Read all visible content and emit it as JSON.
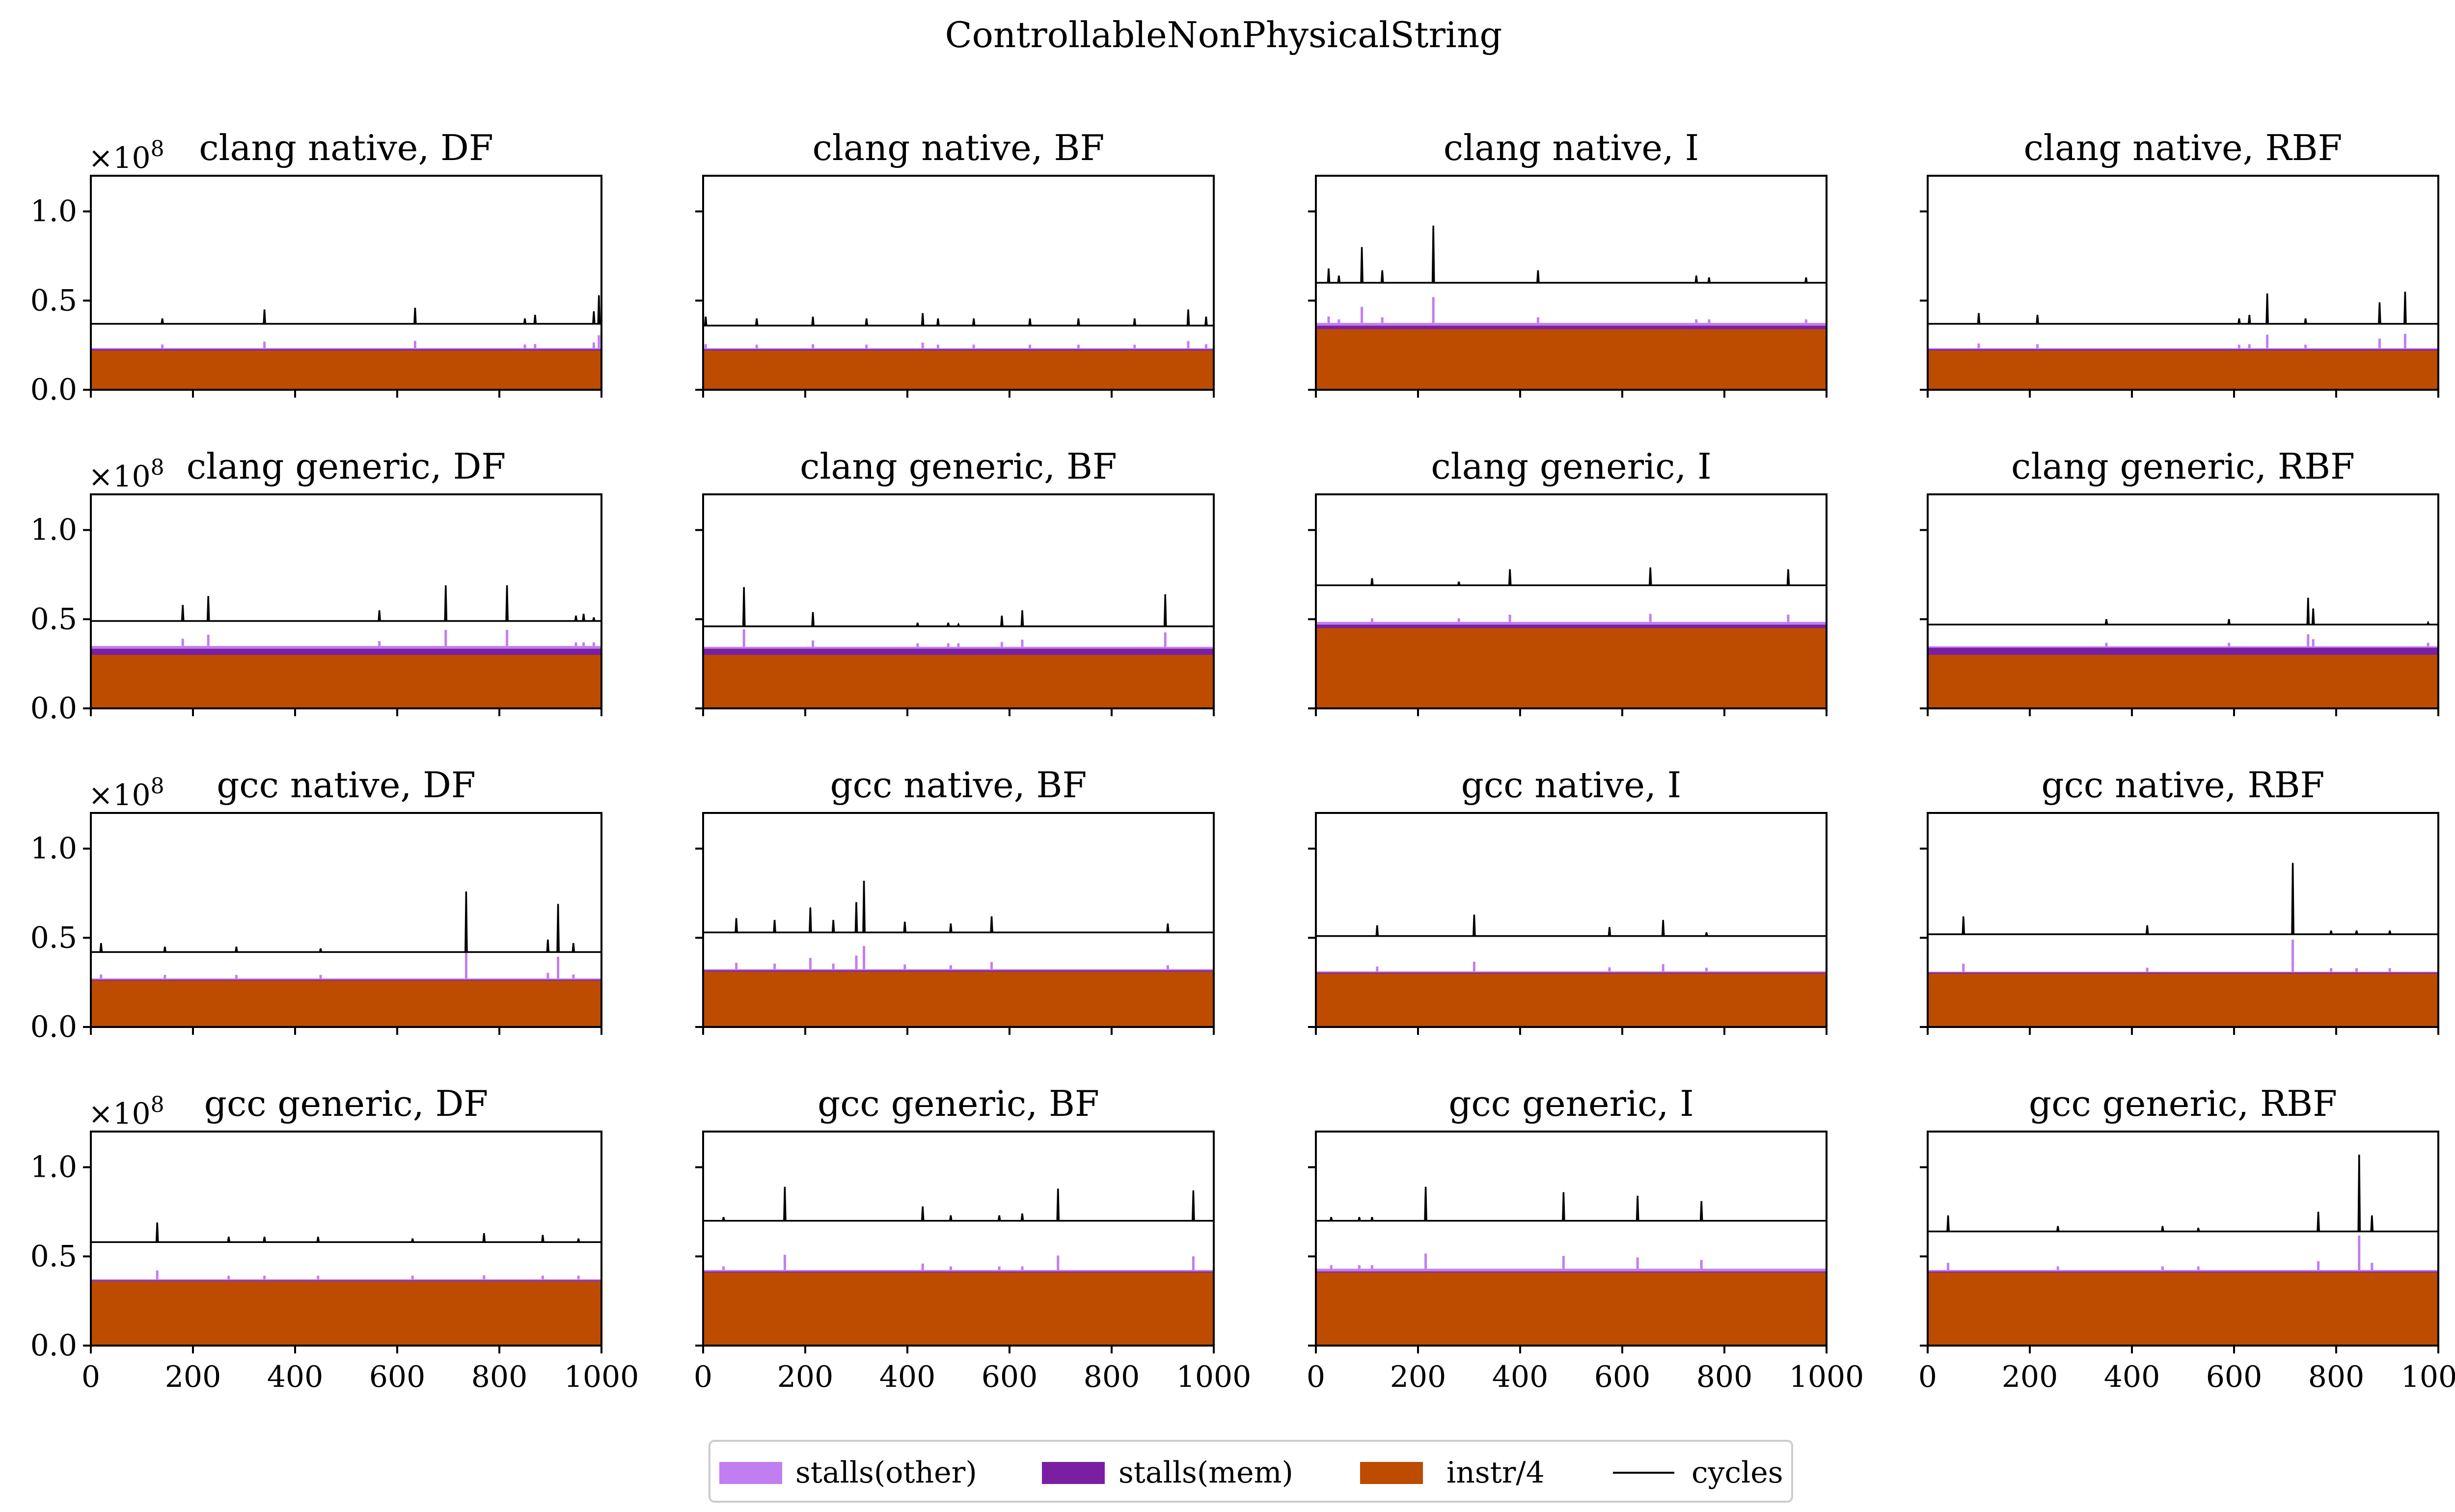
{
  "figure_title": "ControllableNonPhysicalString",
  "colors": {
    "stalls_other": "#c07ef0",
    "stalls_mem": "#7b1fa2",
    "instr": "#bd4b00",
    "cycles": "#000000"
  },
  "legend": [
    {
      "label": "stalls(other)",
      "color_key": "stalls_other",
      "kind": "patch"
    },
    {
      "label": "stalls(mem)",
      "color_key": "stalls_mem",
      "kind": "patch"
    },
    {
      "label": "instr/4",
      "color_key": "instr",
      "kind": "patch"
    },
    {
      "label": "cycles",
      "color_key": "cycles",
      "kind": "line"
    }
  ],
  "chart_data": {
    "type": "area",
    "n_samples": 1000,
    "xlim": [
      0,
      1000
    ],
    "ylim": [
      0,
      1.2
    ],
    "y_multiplier_label": "×10",
    "y_multiplier_exponent": "8",
    "x_tick_labels": [
      "0",
      "200",
      "400",
      "600",
      "800",
      "1000"
    ],
    "x_tick_values": [
      0,
      200,
      400,
      600,
      800,
      1000
    ],
    "y_tick_labels": [
      "0.0",
      "0.5",
      "1.0"
    ],
    "y_tick_values": [
      0,
      0.5,
      1.0
    ],
    "series_names": [
      "stalls(other)",
      "stalls(mem)",
      "instr/4",
      "cycles"
    ],
    "panels": [
      {
        "title": "clang native, DF",
        "instr": 0.22,
        "mem": 0.008,
        "other": 0.006,
        "cycles": 0.37,
        "spikes": [
          [
            140,
            0.4
          ],
          [
            340,
            0.45
          ],
          [
            635,
            0.46
          ],
          [
            850,
            0.4
          ],
          [
            870,
            0.42
          ],
          [
            985,
            0.44
          ],
          [
            995,
            0.53
          ]
        ]
      },
      {
        "title": "clang native, BF",
        "instr": 0.22,
        "mem": 0.008,
        "other": 0.005,
        "cycles": 0.36,
        "spikes": [
          [
            5,
            0.41
          ],
          [
            105,
            0.4
          ],
          [
            215,
            0.41
          ],
          [
            320,
            0.4
          ],
          [
            430,
            0.43
          ],
          [
            460,
            0.4
          ],
          [
            530,
            0.4
          ],
          [
            640,
            0.4
          ],
          [
            735,
            0.4
          ],
          [
            845,
            0.4
          ],
          [
            950,
            0.45
          ],
          [
            985,
            0.41
          ]
        ]
      },
      {
        "title": "clang native, I",
        "instr": 0.34,
        "mem": 0.02,
        "other": 0.015,
        "cycles": 0.6,
        "spikes": [
          [
            25,
            0.68
          ],
          [
            45,
            0.64
          ],
          [
            90,
            0.8
          ],
          [
            130,
            0.67
          ],
          [
            230,
            0.92
          ],
          [
            435,
            0.67
          ],
          [
            745,
            0.64
          ],
          [
            770,
            0.63
          ],
          [
            960,
            0.63
          ]
        ]
      },
      {
        "title": "clang native, RBF",
        "instr": 0.22,
        "mem": 0.008,
        "other": 0.005,
        "cycles": 0.37,
        "spikes": [
          [
            100,
            0.43
          ],
          [
            215,
            0.42
          ],
          [
            610,
            0.4
          ],
          [
            630,
            0.42
          ],
          [
            665,
            0.54
          ],
          [
            740,
            0.4
          ],
          [
            885,
            0.49
          ],
          [
            935,
            0.55
          ]
        ]
      },
      {
        "title": "clang generic, DF",
        "instr": 0.3,
        "mem": 0.035,
        "other": 0.015,
        "cycles": 0.49,
        "spikes": [
          [
            180,
            0.58
          ],
          [
            230,
            0.63
          ],
          [
            565,
            0.55
          ],
          [
            695,
            0.69
          ],
          [
            815,
            0.69
          ],
          [
            950,
            0.52
          ],
          [
            965,
            0.53
          ],
          [
            985,
            0.51
          ]
        ]
      },
      {
        "title": "clang generic, BF",
        "instr": 0.3,
        "mem": 0.035,
        "other": 0.01,
        "cycles": 0.46,
        "spikes": [
          [
            80,
            0.68
          ],
          [
            215,
            0.54
          ],
          [
            420,
            0.48
          ],
          [
            480,
            0.48
          ],
          [
            500,
            0.47
          ],
          [
            585,
            0.52
          ],
          [
            625,
            0.55
          ],
          [
            905,
            0.64
          ]
        ]
      },
      {
        "title": "clang generic, I",
        "instr": 0.45,
        "mem": 0.02,
        "other": 0.015,
        "cycles": 0.69,
        "spikes": [
          [
            110,
            0.73
          ],
          [
            280,
            0.71
          ],
          [
            380,
            0.78
          ],
          [
            655,
            0.79
          ],
          [
            925,
            0.78
          ]
        ]
      },
      {
        "title": "clang generic, RBF",
        "instr": 0.3,
        "mem": 0.04,
        "other": 0.008,
        "cycles": 0.47,
        "spikes": [
          [
            350,
            0.5
          ],
          [
            590,
            0.5
          ],
          [
            745,
            0.62
          ],
          [
            755,
            0.56
          ],
          [
            980,
            0.48
          ]
        ]
      },
      {
        "title": "gcc native, DF",
        "instr": 0.26,
        "mem": 0.006,
        "other": 0.006,
        "cycles": 0.42,
        "spikes": [
          [
            20,
            0.47
          ],
          [
            145,
            0.45
          ],
          [
            285,
            0.45
          ],
          [
            450,
            0.44
          ],
          [
            735,
            0.76
          ],
          [
            895,
            0.49
          ],
          [
            915,
            0.69
          ],
          [
            945,
            0.47
          ]
        ]
      },
      {
        "title": "gcc native, BF",
        "instr": 0.31,
        "mem": 0.008,
        "other": 0.006,
        "cycles": 0.53,
        "spikes": [
          [
            65,
            0.61
          ],
          [
            140,
            0.6
          ],
          [
            210,
            0.67
          ],
          [
            255,
            0.6
          ],
          [
            300,
            0.7
          ],
          [
            315,
            0.82
          ],
          [
            395,
            0.59
          ],
          [
            485,
            0.58
          ],
          [
            565,
            0.62
          ],
          [
            910,
            0.58
          ]
        ]
      },
      {
        "title": "gcc native, I",
        "instr": 0.3,
        "mem": 0.006,
        "other": 0.006,
        "cycles": 0.51,
        "spikes": [
          [
            120,
            0.57
          ],
          [
            310,
            0.63
          ],
          [
            575,
            0.56
          ],
          [
            680,
            0.6
          ],
          [
            765,
            0.53
          ]
        ]
      },
      {
        "title": "gcc native, RBF",
        "instr": 0.3,
        "mem": 0.006,
        "other": 0.004,
        "cycles": 0.52,
        "spikes": [
          [
            70,
            0.62
          ],
          [
            430,
            0.57
          ],
          [
            715,
            0.92
          ],
          [
            790,
            0.54
          ],
          [
            840,
            0.54
          ],
          [
            905,
            0.54
          ]
        ]
      },
      {
        "title": "gcc generic, DF",
        "instr": 0.36,
        "mem": 0.006,
        "other": 0.006,
        "cycles": 0.58,
        "spikes": [
          [
            130,
            0.69
          ],
          [
            270,
            0.61
          ],
          [
            340,
            0.61
          ],
          [
            445,
            0.61
          ],
          [
            630,
            0.6
          ],
          [
            770,
            0.63
          ],
          [
            885,
            0.62
          ],
          [
            955,
            0.6
          ]
        ]
      },
      {
        "title": "gcc generic, BF",
        "instr": 0.41,
        "mem": 0.006,
        "other": 0.008,
        "cycles": 0.7,
        "spikes": [
          [
            40,
            0.72
          ],
          [
            160,
            0.89
          ],
          [
            430,
            0.78
          ],
          [
            485,
            0.73
          ],
          [
            580,
            0.73
          ],
          [
            625,
            0.74
          ],
          [
            695,
            0.88
          ],
          [
            960,
            0.87
          ]
        ]
      },
      {
        "title": "gcc generic, I",
        "instr": 0.41,
        "mem": 0.006,
        "other": 0.015,
        "cycles": 0.7,
        "spikes": [
          [
            30,
            0.72
          ],
          [
            85,
            0.72
          ],
          [
            110,
            0.72
          ],
          [
            215,
            0.89
          ],
          [
            485,
            0.86
          ],
          [
            630,
            0.84
          ],
          [
            755,
            0.81
          ]
        ]
      },
      {
        "title": "gcc generic, RBF",
        "instr": 0.41,
        "mem": 0.006,
        "other": 0.008,
        "cycles": 0.64,
        "spikes": [
          [
            40,
            0.73
          ],
          [
            255,
            0.67
          ],
          [
            460,
            0.67
          ],
          [
            530,
            0.66
          ],
          [
            765,
            0.75
          ],
          [
            845,
            1.07
          ],
          [
            870,
            0.73
          ]
        ]
      }
    ]
  }
}
